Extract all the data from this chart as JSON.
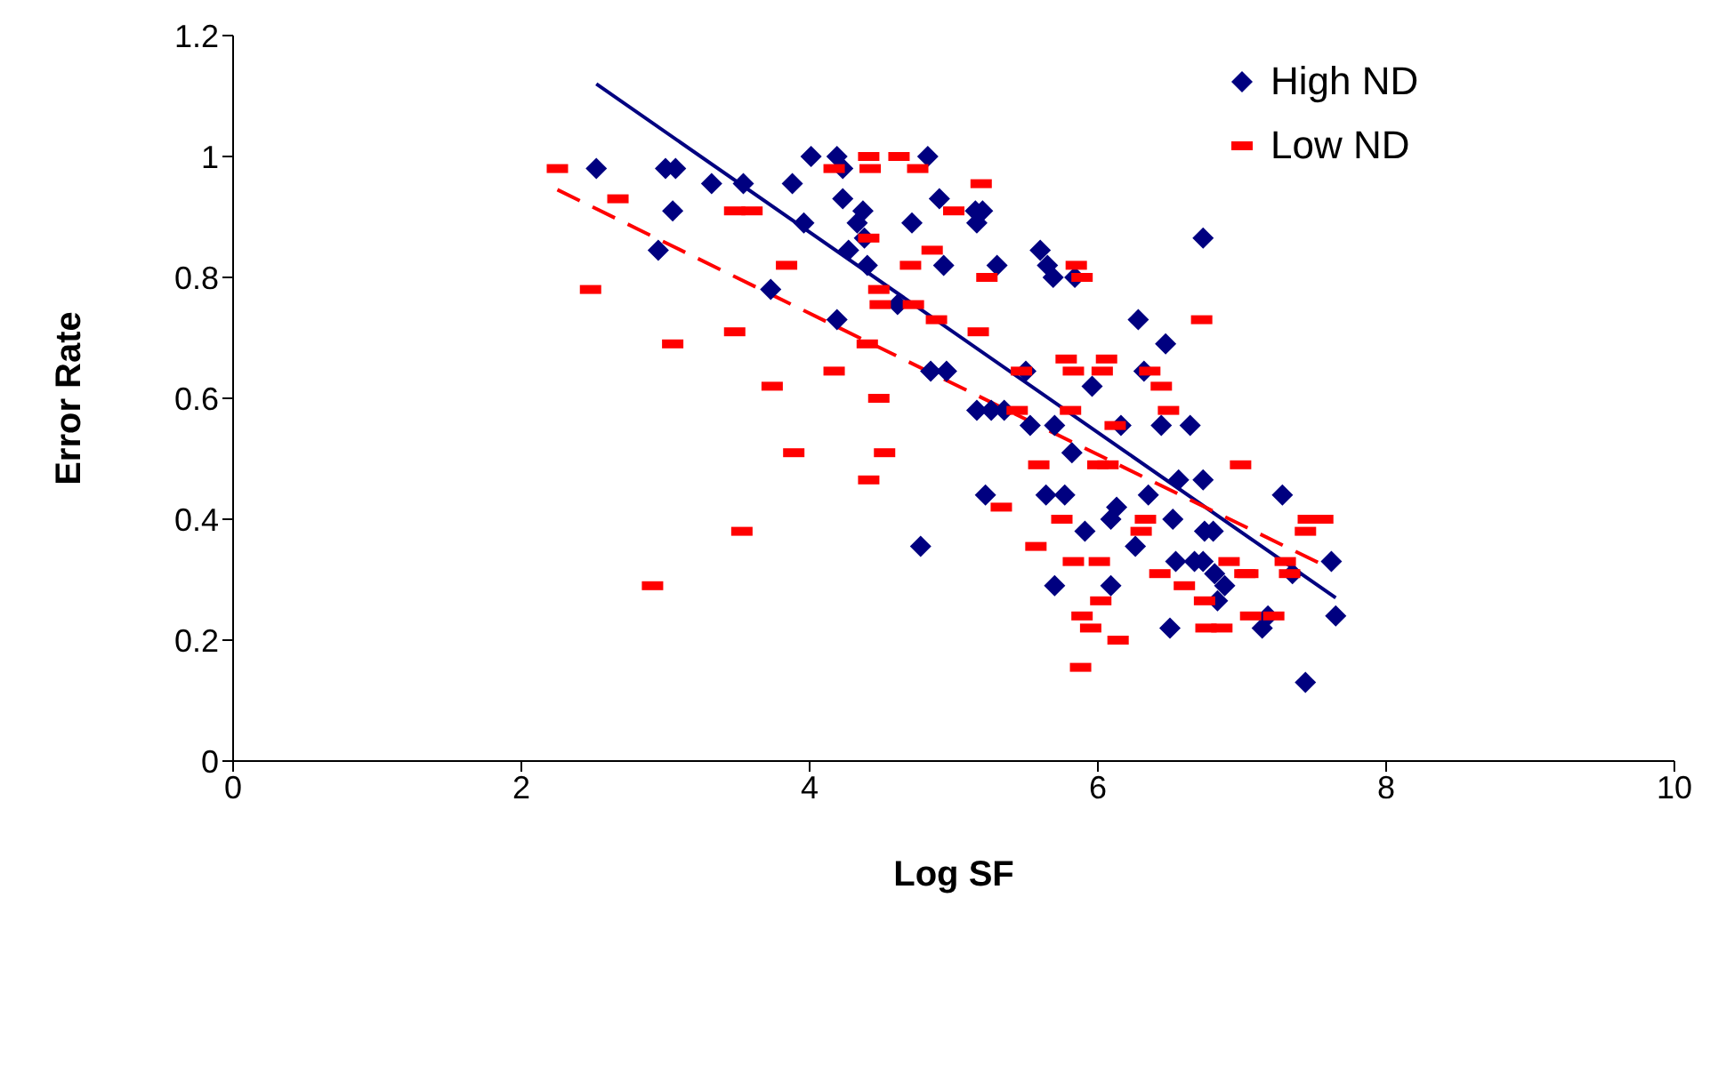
{
  "chart_data": {
    "type": "scatter",
    "xlabel": "Log SF",
    "ylabel": "Error Rate",
    "xlim": [
      0,
      10
    ],
    "xticks": [
      0,
      2,
      4,
      6,
      8,
      10
    ],
    "ylim": [
      0,
      1.2
    ],
    "yticks": [
      0,
      0.2,
      0.4,
      0.6,
      0.8,
      1,
      1.2
    ],
    "legend": "top right",
    "series": [
      {
        "name": "High ND",
        "color": "#000080",
        "marker": "diamond",
        "x": [
          2.52,
          2.95,
          3.0,
          3.07,
          3.05,
          3.32,
          3.54,
          3.73,
          3.88,
          3.96,
          4.01,
          4.19,
          4.19,
          4.23,
          4.23,
          4.27,
          4.33,
          4.37,
          4.38,
          4.4,
          4.61,
          4.71,
          4.82,
          4.84,
          4.9,
          4.93,
          4.95,
          5.15,
          5.16,
          5.16,
          5.2,
          5.22,
          5.26,
          5.3,
          5.35,
          5.5,
          5.53,
          5.6,
          5.64,
          5.65,
          5.69,
          5.7,
          5.7,
          5.77,
          5.82,
          5.84,
          5.91,
          5.96,
          6.09,
          6.09,
          6.13,
          6.16,
          6.26,
          6.28,
          6.32,
          6.35,
          6.44,
          6.47,
          6.5,
          6.52,
          6.54,
          6.56,
          6.64,
          6.67,
          6.73,
          6.73,
          6.73,
          6.74,
          6.8,
          6.81,
          6.83,
          6.88,
          7.14,
          7.18,
          7.28,
          7.35,
          7.44,
          7.62,
          7.65,
          4.77
        ],
        "values": [
          0.98,
          0.845,
          0.98,
          0.98,
          0.91,
          0.955,
          0.955,
          0.78,
          0.955,
          0.89,
          1.0,
          1.0,
          0.73,
          0.98,
          0.93,
          0.845,
          0.89,
          0.91,
          0.865,
          0.82,
          0.755,
          0.89,
          1.0,
          0.645,
          0.93,
          0.82,
          0.645,
          0.91,
          0.58,
          0.89,
          0.91,
          0.44,
          0.58,
          0.82,
          0.58,
          0.645,
          0.555,
          0.845,
          0.44,
          0.82,
          0.8,
          0.555,
          0.29,
          0.44,
          0.51,
          0.8,
          0.38,
          0.62,
          0.4,
          0.29,
          0.42,
          0.555,
          0.355,
          0.73,
          0.645,
          0.44,
          0.555,
          0.69,
          0.22,
          0.4,
          0.33,
          0.465,
          0.555,
          0.33,
          0.865,
          0.465,
          0.33,
          0.38,
          0.38,
          0.31,
          0.265,
          0.29,
          0.22,
          0.24,
          0.44,
          0.31,
          0.13,
          0.33,
          0.24,
          0.355
        ]
      },
      {
        "name": "Low ND",
        "color": "#ff0000",
        "x": [
          2.25,
          2.48,
          2.67,
          2.91,
          3.05,
          3.48,
          3.48,
          3.53,
          3.6,
          3.74,
          3.84,
          3.89,
          4.17,
          4.17,
          4.4,
          4.41,
          4.41,
          4.41,
          4.42,
          4.48,
          4.48,
          4.49,
          4.52,
          4.62,
          4.7,
          4.72,
          4.75,
          4.85,
          4.88,
          5.0,
          5.17,
          5.19,
          5.23,
          5.33,
          5.44,
          5.47,
          5.57,
          5.59,
          5.75,
          5.78,
          5.81,
          5.83,
          5.83,
          5.85,
          5.88,
          5.89,
          5.89,
          5.95,
          6.0,
          6.01,
          6.02,
          6.03,
          6.06,
          6.07,
          6.12,
          6.14,
          6.3,
          6.33,
          6.36,
          6.43,
          6.44,
          6.49,
          6.6,
          6.72,
          6.74,
          6.75,
          6.86,
          6.91,
          6.99,
          7.02,
          7.04,
          7.06,
          7.22,
          7.3,
          7.33,
          7.44,
          7.46,
          7.56
        ],
        "values": [
          0.98,
          0.78,
          0.93,
          0.29,
          0.69,
          0.91,
          0.71,
          0.38,
          0.91,
          0.62,
          0.82,
          0.51,
          0.98,
          0.645,
          0.69,
          1.0,
          0.865,
          0.465,
          0.98,
          0.78,
          0.6,
          0.755,
          0.51,
          1.0,
          0.82,
          0.755,
          0.98,
          0.845,
          0.73,
          0.91,
          0.71,
          0.955,
          0.8,
          0.42,
          0.58,
          0.645,
          0.355,
          0.49,
          0.4,
          0.665,
          0.58,
          0.645,
          0.33,
          0.82,
          0.155,
          0.8,
          0.24,
          0.22,
          0.49,
          0.33,
          0.265,
          0.645,
          0.665,
          0.49,
          0.555,
          0.2,
          0.38,
          0.4,
          0.645,
          0.31,
          0.62,
          0.58,
          0.29,
          0.73,
          0.265,
          0.22,
          0.22,
          0.33,
          0.49,
          0.31,
          0.31,
          0.24,
          0.24,
          0.33,
          0.31,
          0.38,
          0.4,
          0.4
        ]
      },
      {
        "type": "line",
        "color": "#000080",
        "line_style": "solid",
        "x": [
          2.52,
          7.65
        ],
        "values": [
          1.12,
          0.27
        ]
      },
      {
        "type": "line",
        "color": "#ff0000",
        "line_style": "dashed",
        "x": [
          2.25,
          7.6
        ],
        "values": [
          0.945,
          0.32
        ]
      }
    ]
  }
}
